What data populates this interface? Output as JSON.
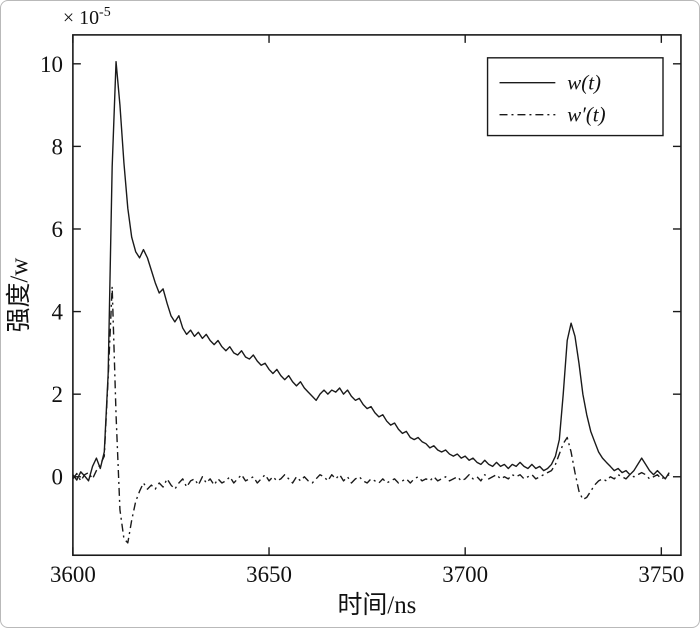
{
  "chart_data": {
    "type": "line",
    "title": "",
    "xlabel": "时间/ns",
    "ylabel": "强度/w",
    "y_offset_base": "× 10",
    "y_offset_exp": "-5",
    "y_unit_scale": "1e-5",
    "xlim": [
      3600,
      3755
    ],
    "ylim": [
      -1.9,
      10.7
    ],
    "xticks": [
      3600,
      3650,
      3700,
      3750
    ],
    "yticks": [
      0,
      2,
      4,
      6,
      8,
      10
    ],
    "grid": false,
    "legend_position": "upper right",
    "x_start": 3600,
    "x_step": 1,
    "series": [
      {
        "name": "w(t)",
        "line": "solid",
        "values": [
          0.05,
          -0.08,
          0.12,
          0.02,
          -0.1,
          0.25,
          0.45,
          0.2,
          0.6,
          2.5,
          7.5,
          10.05,
          9.0,
          7.6,
          6.5,
          5.8,
          5.45,
          5.3,
          5.5,
          5.3,
          5.0,
          4.7,
          4.45,
          4.55,
          4.2,
          3.9,
          3.75,
          3.9,
          3.6,
          3.45,
          3.55,
          3.4,
          3.5,
          3.35,
          3.45,
          3.3,
          3.2,
          3.3,
          3.15,
          3.05,
          3.15,
          3.0,
          2.95,
          3.05,
          2.9,
          2.85,
          2.95,
          2.8,
          2.7,
          2.75,
          2.6,
          2.5,
          2.6,
          2.45,
          2.35,
          2.45,
          2.3,
          2.2,
          2.3,
          2.15,
          2.05,
          1.95,
          1.85,
          2.0,
          2.1,
          2.0,
          2.1,
          2.05,
          2.15,
          2.0,
          2.1,
          1.95,
          1.85,
          1.9,
          1.75,
          1.65,
          1.7,
          1.55,
          1.45,
          1.5,
          1.35,
          1.25,
          1.3,
          1.15,
          1.05,
          1.1,
          0.95,
          0.9,
          0.95,
          0.85,
          0.8,
          0.7,
          0.75,
          0.65,
          0.6,
          0.65,
          0.55,
          0.5,
          0.55,
          0.45,
          0.5,
          0.4,
          0.45,
          0.35,
          0.3,
          0.4,
          0.3,
          0.25,
          0.35,
          0.25,
          0.3,
          0.2,
          0.3,
          0.25,
          0.35,
          0.25,
          0.2,
          0.3,
          0.2,
          0.25,
          0.15,
          0.2,
          0.3,
          0.5,
          0.9,
          2.0,
          3.3,
          3.72,
          3.4,
          2.75,
          2.0,
          1.5,
          1.1,
          0.85,
          0.6,
          0.45,
          0.35,
          0.25,
          0.15,
          0.2,
          0.1,
          0.15,
          0.05,
          0.15,
          0.3,
          0.45,
          0.3,
          0.15,
          0.05,
          0.15,
          0.05,
          -0.05,
          0.1
        ]
      },
      {
        "name": "w′(t)",
        "line": "dashdot",
        "values": [
          -0.05,
          0.08,
          -0.1,
          0.05,
          0.1,
          -0.05,
          0.15,
          0.3,
          0.5,
          2.4,
          4.6,
          1.5,
          -0.8,
          -1.5,
          -1.6,
          -1.05,
          -0.6,
          -0.35,
          -0.15,
          -0.3,
          -0.2,
          -0.3,
          -0.15,
          -0.25,
          -0.05,
          -0.2,
          -0.3,
          -0.15,
          -0.05,
          -0.25,
          -0.1,
          -0.05,
          -0.2,
          0.0,
          -0.15,
          -0.05,
          -0.2,
          -0.05,
          -0.15,
          -0.1,
          0.0,
          -0.15,
          -0.05,
          0.05,
          -0.1,
          -0.05,
          0.0,
          -0.15,
          -0.05,
          0.05,
          -0.1,
          0.0,
          -0.1,
          -0.05,
          0.05,
          -0.05,
          -0.15,
          0.0,
          -0.1,
          0.0,
          -0.1,
          -0.15,
          -0.05,
          0.05,
          0.0,
          -0.1,
          0.05,
          -0.05,
          0.05,
          -0.1,
          0.0,
          -0.15,
          -0.05,
          0.0,
          -0.1,
          -0.15,
          -0.05,
          -0.1,
          -0.15,
          -0.05,
          -0.15,
          -0.1,
          -0.05,
          -0.15,
          -0.1,
          -0.05,
          -0.15,
          -0.05,
          0.0,
          -0.1,
          -0.05,
          -0.1,
          0.0,
          -0.1,
          -0.05,
          0.0,
          -0.1,
          -0.05,
          0.0,
          -0.1,
          -0.05,
          0.05,
          -0.05,
          0.0,
          -0.1,
          0.05,
          -0.05,
          0.0,
          0.05,
          -0.05,
          0.0,
          -0.05,
          0.05,
          0.0,
          0.05,
          -0.05,
          0.0,
          0.05,
          -0.05,
          0.0,
          0.05,
          0.1,
          0.15,
          0.3,
          0.55,
          0.8,
          0.95,
          0.6,
          0.1,
          -0.35,
          -0.55,
          -0.5,
          -0.35,
          -0.2,
          -0.1,
          -0.05,
          -0.1,
          0.0,
          -0.05,
          0.05,
          0.0,
          -0.05,
          0.05,
          0.0,
          0.05,
          0.1,
          0.05,
          -0.05,
          0.0,
          0.05,
          -0.05,
          0.0,
          0.05
        ]
      }
    ]
  }
}
